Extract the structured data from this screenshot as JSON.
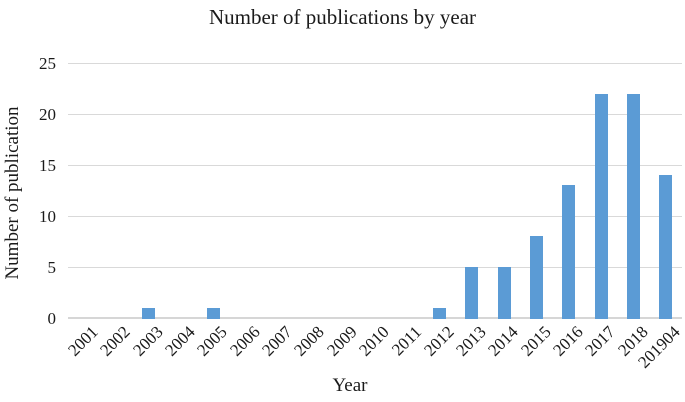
{
  "chart_data": {
    "type": "bar",
    "title": "Number of publications by year",
    "xlabel": "Year",
    "ylabel": "Number of publication",
    "categories": [
      "2001",
      "2002",
      "2003",
      "2004",
      "2005",
      "2006",
      "2007",
      "2008",
      "2009",
      "2010",
      "2011",
      "2012",
      "2013",
      "2014",
      "2015",
      "2016",
      "2017",
      "2018",
      "201904"
    ],
    "values": [
      0,
      0,
      1,
      0,
      1,
      0,
      0,
      0,
      0,
      0,
      0,
      1,
      5,
      5,
      8,
      13,
      22,
      22,
      14
    ],
    "ylim": [
      0,
      25
    ],
    "yticks": [
      0,
      5,
      10,
      15,
      20,
      25
    ],
    "grid": true,
    "legend": false,
    "bar_color": "#5B9BD5",
    "gridline_color": "#D9D9D9",
    "axis_line_color": "#D6D6D6",
    "text_color": "#1a1a1a"
  }
}
